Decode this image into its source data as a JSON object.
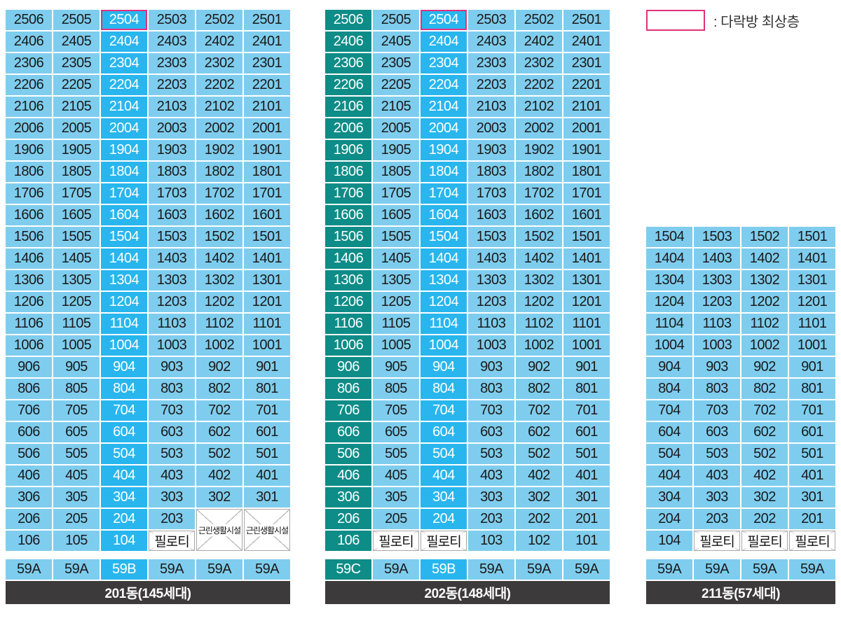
{
  "legend": {
    "text": ": 다락방 최상층",
    "color": "#e0327a"
  },
  "colors": {
    "type_a": "#7fcdee",
    "type_b": "#29b6ee",
    "type_c": "#0e8c87",
    "label_bg": "#3c3a3a"
  },
  "buildings": [
    {
      "label": "201동(145세대)",
      "columns": 6,
      "top_floor": 25,
      "min_floor": 1,
      "line_codes": [
        "06",
        "05",
        "04",
        "03",
        "02",
        "01"
      ],
      "col_classes": [
        "a",
        "a",
        "b",
        "a",
        "a",
        "a"
      ],
      "types": [
        "59A",
        "59A",
        "59B",
        "59A",
        "59A",
        "59A"
      ],
      "penthouse": [
        "2504"
      ],
      "special": {
        "203": "cell",
        "103": "필로티",
        "202": "facility:근린생활시설",
        "102": "facility-skip",
        "201": "facility:근린생활시설",
        "101": "facility-skip"
      }
    },
    {
      "label": "202동(148세대)",
      "columns": 6,
      "top_floor": 25,
      "min_floor": 1,
      "line_codes": [
        "06",
        "05",
        "04",
        "03",
        "02",
        "01"
      ],
      "col_classes": [
        "c",
        "a",
        "b",
        "a",
        "a",
        "a"
      ],
      "types": [
        "59C",
        "59A",
        "59B",
        "59A",
        "59A",
        "59A"
      ],
      "penthouse": [
        "2504"
      ],
      "special": {
        "105": "필로티",
        "104": "필로티"
      }
    },
    {
      "label": "211동(57세대)",
      "columns": 4,
      "top_floor": 15,
      "min_floor": 1,
      "line_codes": [
        "04",
        "03",
        "02",
        "01"
      ],
      "col_classes": [
        "a",
        "a",
        "a",
        "a"
      ],
      "types": [
        "59A",
        "59A",
        "59A",
        "59A"
      ],
      "penthouse": [],
      "special": {
        "103": "필로티",
        "102": "필로티",
        "101": "필로티"
      }
    }
  ]
}
